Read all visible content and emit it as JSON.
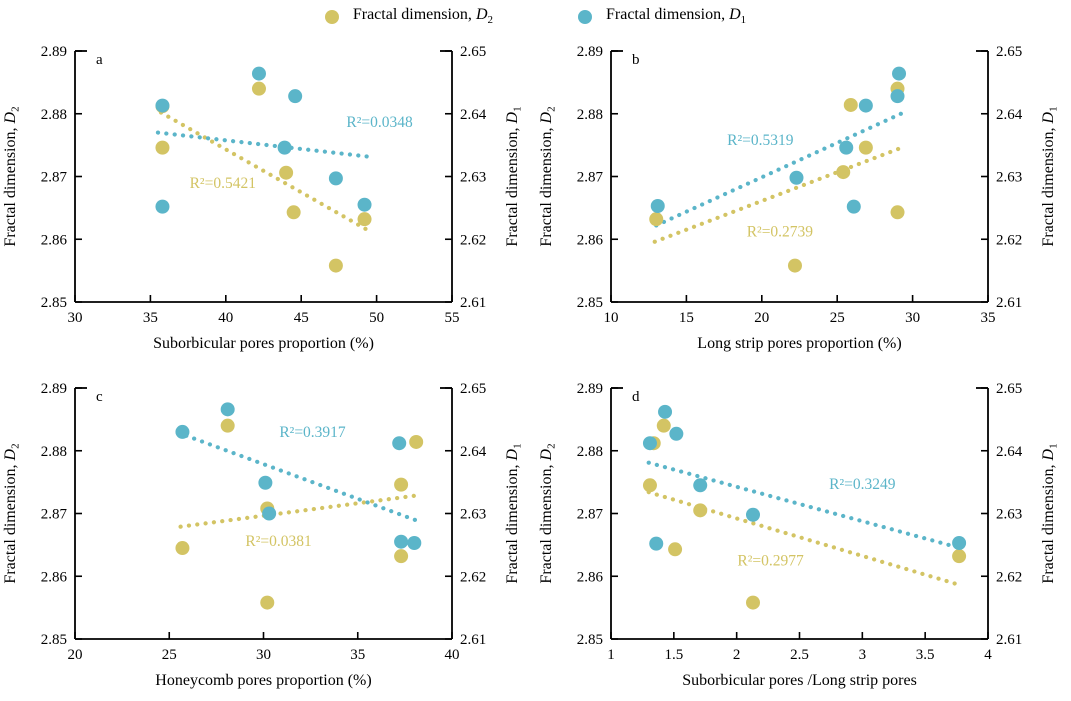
{
  "colors": {
    "d2_yellow": "#d3c464",
    "d1_blue": "#5bb5c9",
    "axis": "#000000",
    "text": "#000000",
    "background": "#ffffff"
  },
  "legend": {
    "items": [
      {
        "series": "D2",
        "pre": "Fractal dimension, ",
        "var": "D",
        "sub": "2",
        "color": "#d3c464"
      },
      {
        "series": "D1",
        "pre": "Fractal dimension, ",
        "var": "D",
        "sub": "1",
        "color": "#5bb5c9"
      }
    ]
  },
  "axes": {
    "ylim_left": [
      2.85,
      2.89
    ],
    "yticks_left": [
      "2.85",
      "2.86",
      "2.87",
      "2.88",
      "2.89"
    ],
    "ylabel_left": {
      "pre": "Fractal dimension, ",
      "var": "D",
      "sub": "2"
    },
    "ylim_right": [
      2.61,
      2.65
    ],
    "yticks_right": [
      "2.61",
      "2.62",
      "2.63",
      "2.64",
      "2.65"
    ],
    "ylabel_right": {
      "pre": "Fractal dimension, ",
      "var": "D",
      "sub": "1"
    }
  },
  "chart_data": [
    {
      "type": "scatter",
      "panel_label": "a",
      "xlabel": "Suborbicular pores proportion (%)",
      "xlim": [
        30,
        55
      ],
      "xticks": [
        30,
        35,
        40,
        45,
        50,
        55
      ],
      "xtick_labels": [
        "30",
        "35",
        "40",
        "45",
        "50",
        "55"
      ],
      "series": [
        {
          "name": "Fractal dimension, D2",
          "axis": "left",
          "color": "#d3c464",
          "points": [
            [
              35.8,
              2.8812
            ],
            [
              35.8,
              2.8746
            ],
            [
              42.2,
              2.884
            ],
            [
              44.0,
              2.8706
            ],
            [
              44.5,
              2.8643
            ],
            [
              47.3,
              2.8558
            ],
            [
              49.2,
              2.8632
            ]
          ],
          "trend": [
            [
              35.7,
              2.8802
            ],
            [
              49.6,
              2.8612
            ]
          ],
          "r2_label": "R²=0.5421",
          "r2_pos": [
            39.8,
            2.869
          ]
        },
        {
          "name": "Fractal dimension, D1",
          "axis": "right",
          "color": "#5bb5c9",
          "points": [
            [
              35.8,
              2.6413
            ],
            [
              35.8,
              2.6252
            ],
            [
              42.2,
              2.6464
            ],
            [
              43.9,
              2.6346
            ],
            [
              44.6,
              2.6428
            ],
            [
              47.3,
              2.6297
            ],
            [
              49.2,
              2.6255
            ]
          ],
          "trend": [
            [
              35.5,
              2.637
            ],
            [
              49.7,
              2.6331
            ]
          ],
          "r2_label": "R²=0.0348",
          "r2_pos": [
            50.2,
            2.6387
          ]
        }
      ]
    },
    {
      "type": "scatter",
      "panel_label": "b",
      "xlabel": "Long strip pores proportion (%)",
      "xlim": [
        10,
        35
      ],
      "xticks": [
        10,
        15,
        20,
        25,
        30,
        35
      ],
      "xtick_labels": [
        "10",
        "15",
        "20",
        "25",
        "30",
        "35"
      ],
      "series": [
        {
          "name": "Fractal dimension, D2",
          "axis": "left",
          "color": "#d3c464",
          "points": [
            [
              13.0,
              2.8632
            ],
            [
              22.2,
              2.8558
            ],
            [
              25.4,
              2.8707
            ],
            [
              25.9,
              2.8814
            ],
            [
              26.9,
              2.8746
            ],
            [
              29.0,
              2.884
            ],
            [
              29.0,
              2.8643
            ]
          ],
          "trend": [
            [
              12.9,
              2.8596
            ],
            [
              29.5,
              2.8748
            ]
          ],
          "r2_label": "R²=0.2739",
          "r2_pos": [
            21.2,
            2.8612
          ]
        },
        {
          "name": "Fractal dimension, D1",
          "axis": "right",
          "color": "#5bb5c9",
          "points": [
            [
              13.1,
              2.6253
            ],
            [
              22.3,
              2.6298
            ],
            [
              25.6,
              2.6346
            ],
            [
              26.1,
              2.6252
            ],
            [
              26.9,
              2.6413
            ],
            [
              29.1,
              2.6464
            ],
            [
              29.0,
              2.6428
            ]
          ],
          "trend": [
            [
              13.0,
              2.6222
            ],
            [
              29.5,
              2.6403
            ]
          ],
          "r2_label": "R²=0.5319",
          "r2_pos": [
            19.9,
            2.6358
          ]
        }
      ]
    },
    {
      "type": "scatter",
      "panel_label": "c",
      "xlabel": "Honeycomb pores proportion (%)",
      "xlim": [
        20,
        40
      ],
      "xticks": [
        20,
        25,
        30,
        35,
        40
      ],
      "xtick_labels": [
        "20",
        "25",
        "30",
        "35",
        "40"
      ],
      "series": [
        {
          "name": "Fractal dimension, D2",
          "axis": "left",
          "color": "#d3c464",
          "points": [
            [
              25.7,
              2.8645
            ],
            [
              28.1,
              2.884
            ],
            [
              30.2,
              2.8708
            ],
            [
              30.2,
              2.8558
            ],
            [
              37.3,
              2.8746
            ],
            [
              37.3,
              2.8632
            ],
            [
              38.1,
              2.8814
            ]
          ],
          "trend": [
            [
              25.6,
              2.8679
            ],
            [
              38.2,
              2.8729
            ]
          ],
          "r2_label": "R²=0.0381",
          "r2_pos": [
            30.8,
            2.8656
          ]
        },
        {
          "name": "Fractal dimension, D1",
          "axis": "right",
          "color": "#5bb5c9",
          "points": [
            [
              25.7,
              2.643
            ],
            [
              28.1,
              2.6466
            ],
            [
              30.1,
              2.6349
            ],
            [
              30.3,
              2.63
            ],
            [
              37.2,
              2.6412
            ],
            [
              37.3,
              2.6255
            ],
            [
              38.0,
              2.6253
            ]
          ],
          "trend": [
            [
              25.9,
              2.6424
            ],
            [
              38.2,
              2.6288
            ]
          ],
          "r2_label": "R²=0.3917",
          "r2_pos": [
            32.6,
            2.643
          ]
        }
      ]
    },
    {
      "type": "scatter",
      "panel_label": "d",
      "xlabel": "Suborbicular pores /Long strip pores",
      "xlim": [
        1,
        4
      ],
      "xticks": [
        1,
        1.5,
        2,
        2.5,
        3,
        3.5,
        4
      ],
      "xtick_labels": [
        "1",
        "1.5",
        "2",
        "2.5",
        "3",
        "3.5",
        "4"
      ],
      "series": [
        {
          "name": "Fractal dimension, D2",
          "axis": "left",
          "color": "#d3c464",
          "points": [
            [
              1.34,
              2.8812
            ],
            [
              1.42,
              2.884
            ],
            [
              1.31,
              2.8745
            ],
            [
              1.71,
              2.8705
            ],
            [
              1.51,
              2.8643
            ],
            [
              2.13,
              2.8558
            ],
            [
              3.77,
              2.8632
            ]
          ],
          "trend": [
            [
              1.3,
              2.8734
            ],
            [
              3.76,
              2.8587
            ]
          ],
          "r2_label": "R²=0.2977",
          "r2_pos": [
            2.27,
            2.8625
          ]
        },
        {
          "name": "Fractal dimension, D1",
          "axis": "right",
          "color": "#5bb5c9",
          "points": [
            [
              1.31,
              2.6412
            ],
            [
              1.43,
              2.6462
            ],
            [
              1.52,
              2.6427
            ],
            [
              1.71,
              2.6345
            ],
            [
              2.13,
              2.6298
            ],
            [
              1.36,
              2.6252
            ],
            [
              3.77,
              2.6253
            ]
          ],
          "trend": [
            [
              1.3,
              2.6381
            ],
            [
              3.76,
              2.6246
            ]
          ],
          "r2_label": "R²=0.3249",
          "r2_pos": [
            3.0,
            2.6347
          ]
        }
      ]
    }
  ]
}
